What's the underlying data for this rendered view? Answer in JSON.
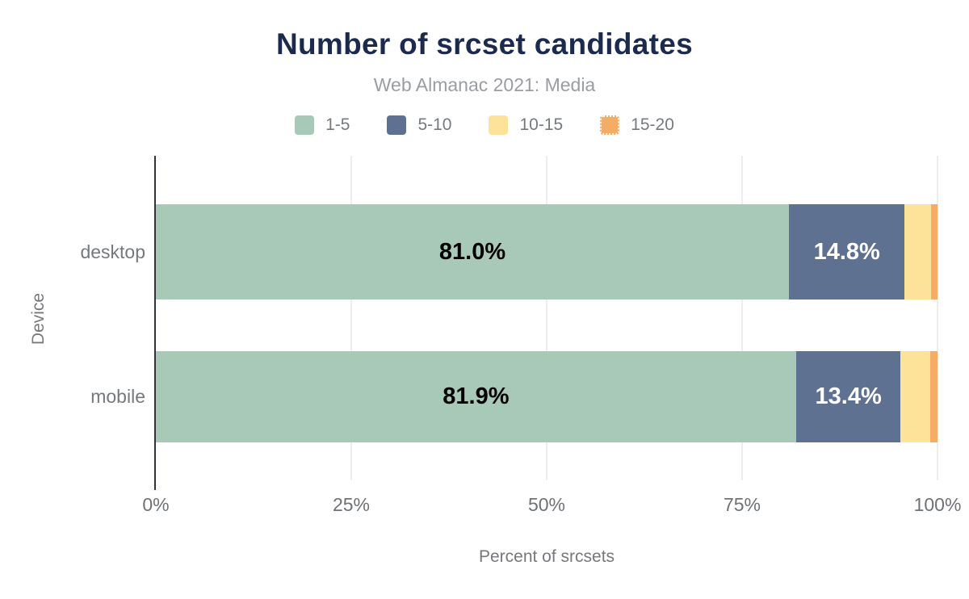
{
  "chart_data": {
    "type": "bar",
    "variant": "horizontal-stacked",
    "title": "Number of srcset candidates",
    "subtitle": "Web Almanac 2021: Media",
    "xlabel": "Percent of srcsets",
    "ylabel": "Device",
    "categories": [
      "desktop",
      "mobile"
    ],
    "series": [
      {
        "name": "1-5",
        "color": "#a8c9b7",
        "values": [
          81.0,
          81.9
        ],
        "labels": [
          "81.0%",
          "81.9%"
        ],
        "label_color": "#000000",
        "dotted": false
      },
      {
        "name": "5-10",
        "color": "#5f7190",
        "values": [
          14.8,
          13.4
        ],
        "labels": [
          "14.8%",
          "13.4%"
        ],
        "label_color": "#ffffff",
        "dotted": false
      },
      {
        "name": "10-15",
        "color": "#fde39a",
        "values": [
          3.4,
          3.8
        ],
        "labels": null,
        "label_color": null,
        "dotted": false
      },
      {
        "name": "15-20",
        "color": "#f5ac64",
        "values": [
          0.8,
          0.9
        ],
        "labels": null,
        "label_color": null,
        "dotted": true
      }
    ],
    "x_ticks": [
      "0%",
      "25%",
      "50%",
      "75%",
      "100%"
    ],
    "x_tick_values": [
      0,
      25,
      50,
      75,
      100
    ],
    "xlim": [
      0,
      100
    ],
    "grid": "vertical",
    "legend_position": "top",
    "title_color": "#1c2b4d",
    "axis_text_color": "#75797d"
  }
}
